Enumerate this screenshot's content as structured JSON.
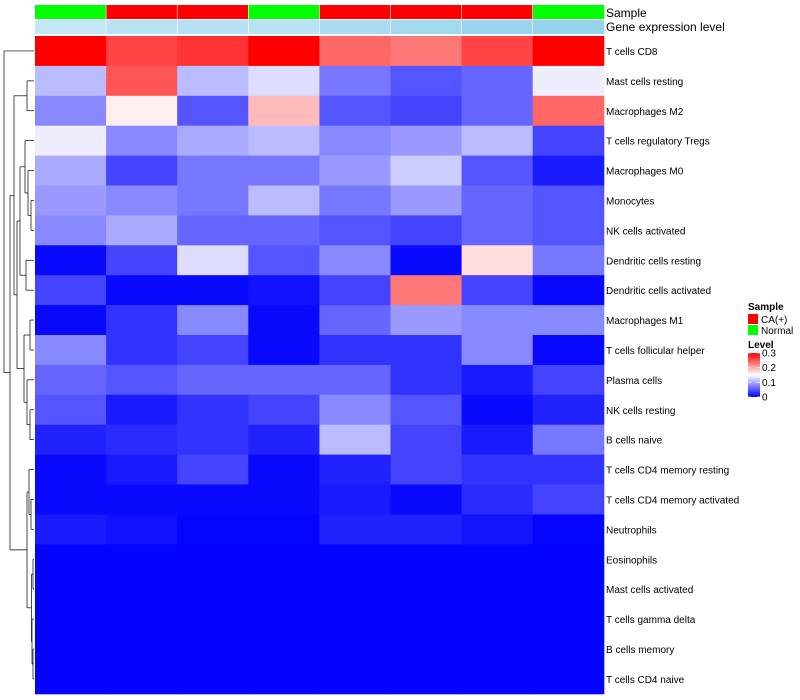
{
  "chart_data": {
    "type": "heatmap",
    "annotation_tracks": [
      {
        "name": "Sample",
        "values": [
          "Normal",
          "CA(+)",
          "CA(+)",
          "Normal",
          "CA(+)",
          "CA(+)",
          "CA(+)",
          "Normal"
        ]
      },
      {
        "name": "Gene expression level",
        "values": [
          0.5,
          0.58,
          0.62,
          0.58,
          0.72,
          0.78,
          0.85,
          0.88
        ]
      }
    ],
    "rows": [
      "T cells CD8",
      "Mast cells resting",
      "Macrophages M2",
      "T cells regulatory  Tregs",
      "Macrophages M0",
      "Monocytes",
      "NK cells activated",
      "Dendritic cells resting",
      "Dendritic cells activated",
      "Macrophages M1",
      "T cells follicular helper",
      "Plasma cells",
      "NK cells resting",
      "B cells naive",
      "T cells CD4 memory resting",
      "T cells CD4 memory activated",
      "Neutrophils",
      "Eosinophils",
      "Mast cells activated",
      "T cells gamma delta",
      "B cells memory",
      "T cells CD4 naive"
    ],
    "values": [
      [
        0.3,
        0.26,
        0.27,
        0.3,
        0.24,
        0.23,
        0.26,
        0.3
      ],
      [
        0.11,
        0.25,
        0.11,
        0.13,
        0.07,
        0.05,
        0.06,
        0.14
      ],
      [
        0.08,
        0.16,
        0.05,
        0.19,
        0.05,
        0.04,
        0.06,
        0.24
      ],
      [
        0.14,
        0.08,
        0.1,
        0.11,
        0.08,
        0.09,
        0.11,
        0.04
      ],
      [
        0.1,
        0.04,
        0.07,
        0.07,
        0.09,
        0.12,
        0.05,
        0.015
      ],
      [
        0.09,
        0.08,
        0.07,
        0.11,
        0.07,
        0.09,
        0.06,
        0.05
      ],
      [
        0.08,
        0.1,
        0.06,
        0.06,
        0.05,
        0.04,
        0.06,
        0.05
      ],
      [
        0.005,
        0.04,
        0.13,
        0.05,
        0.08,
        0.005,
        0.17,
        0.07
      ],
      [
        0.04,
        0.005,
        0.005,
        0.01,
        0.04,
        0.23,
        0.04,
        0.005
      ],
      [
        0.005,
        0.03,
        0.08,
        0.005,
        0.06,
        0.09,
        0.08,
        0.08
      ],
      [
        0.08,
        0.03,
        0.04,
        0.005,
        0.03,
        0.03,
        0.08,
        0.005
      ],
      [
        0.06,
        0.05,
        0.06,
        0.06,
        0.06,
        0.03,
        0.015,
        0.04
      ],
      [
        0.05,
        0.015,
        0.03,
        0.04,
        0.08,
        0.05,
        0.005,
        0.02
      ],
      [
        0.02,
        0.025,
        0.03,
        0.02,
        0.11,
        0.04,
        0.015,
        0.07
      ],
      [
        0.005,
        0.015,
        0.04,
        0.005,
        0.02,
        0.04,
        0.03,
        0.03
      ],
      [
        0.005,
        0.005,
        0.005,
        0.005,
        0.015,
        0.005,
        0.025,
        0.04
      ],
      [
        0.015,
        0.01,
        0.003,
        0.003,
        0.02,
        0.02,
        0.012,
        0.003
      ],
      [
        0.002,
        0.002,
        0.002,
        0.002,
        0.002,
        0.002,
        0.002,
        0.002
      ],
      [
        0.002,
        0.002,
        0.002,
        0.002,
        0.002,
        0.002,
        0.002,
        0.002
      ],
      [
        0.002,
        0.002,
        0.002,
        0.002,
        0.002,
        0.002,
        0.002,
        0.002
      ],
      [
        0.002,
        0.002,
        0.002,
        0.002,
        0.002,
        0.002,
        0.002,
        0.002
      ],
      [
        0.002,
        0.002,
        0.002,
        0.002,
        0.002,
        0.002,
        0.002,
        0.002
      ]
    ],
    "color_scale": {
      "min": 0,
      "max": 0.3,
      "colors": [
        "#0000FF",
        "#FFFFFF",
        "#FF0000"
      ]
    },
    "row_dendrogram": true,
    "legend": {
      "sample": {
        "title": "Sample",
        "items": [
          {
            "label": "CA(+)",
            "color": "#FF0000"
          },
          {
            "label": "Normal",
            "color": "#00FF00"
          }
        ]
      },
      "level": {
        "title": "Level",
        "ticks": [
          {
            "label": "0.3",
            "value": 0.3
          },
          {
            "label": "0.2",
            "value": 0.2
          },
          {
            "label": "0.1",
            "value": 0.1
          },
          {
            "label": "0",
            "value": 0
          }
        ]
      }
    },
    "track_colors": {
      "CA(+)": "#FF0000",
      "Normal": "#00FF00",
      "expr_low": "#FFFFFF",
      "expr_high": "#87CEEB"
    }
  }
}
